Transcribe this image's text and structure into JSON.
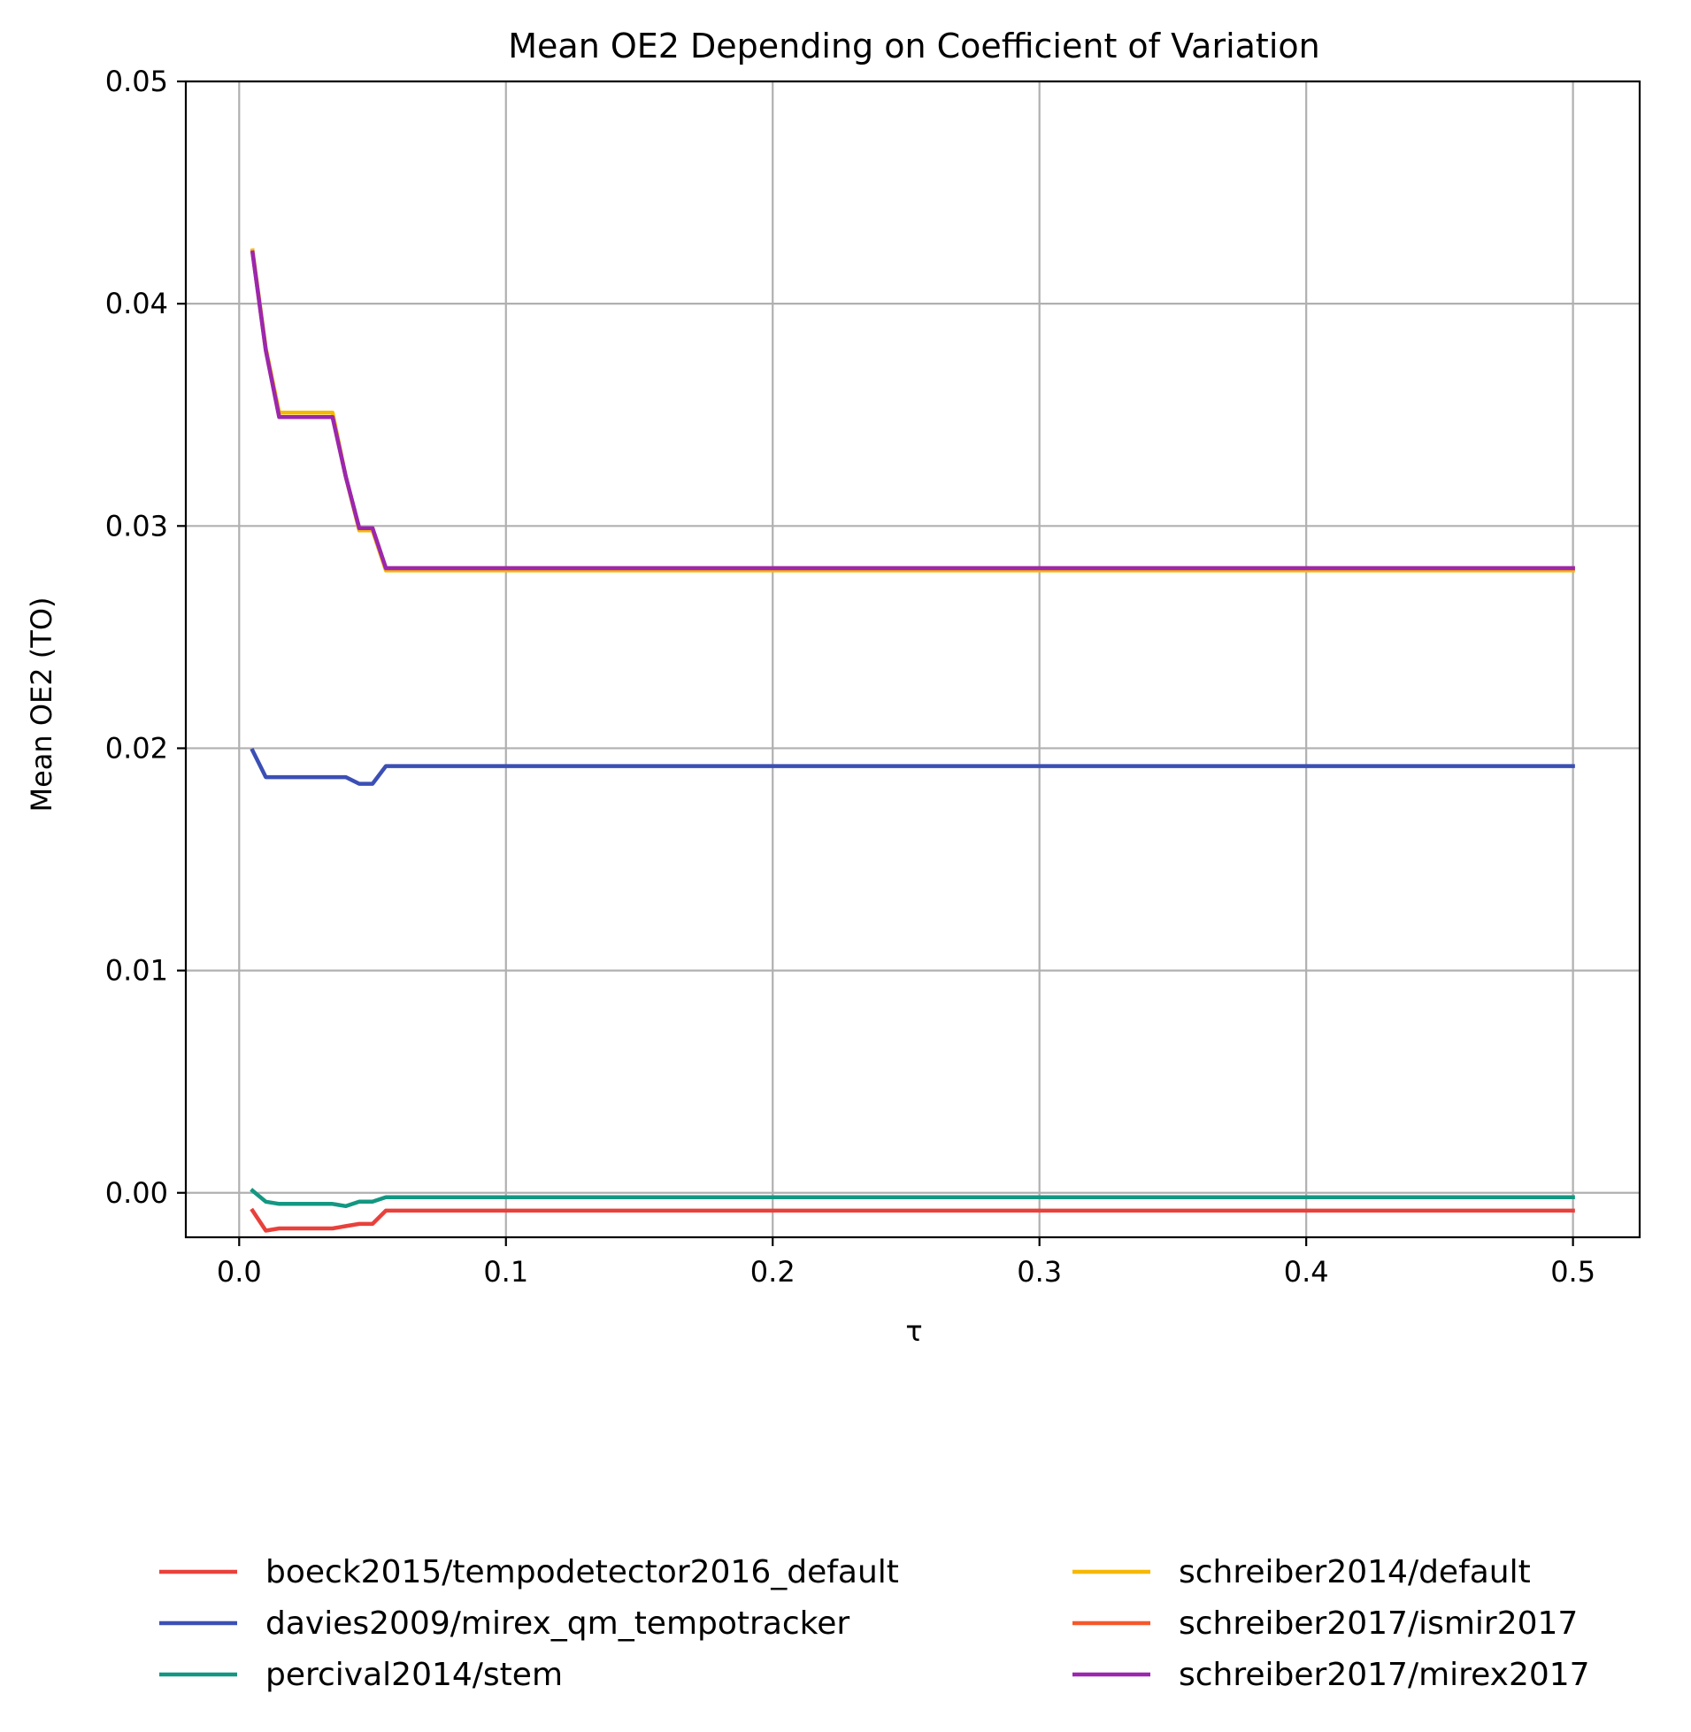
{
  "chart_data": {
    "type": "line",
    "title": "Mean OE2 Depending on Coefficient of Variation",
    "xlabel": "τ",
    "ylabel": "Mean OE2 (TO)",
    "xlim": [
      -0.02,
      0.525
    ],
    "ylim": [
      -0.002,
      0.05
    ],
    "xticks": [
      0.0,
      0.1,
      0.2,
      0.3,
      0.4,
      0.5
    ],
    "xtick_labels": [
      "0.0",
      "0.1",
      "0.2",
      "0.3",
      "0.4",
      "0.5"
    ],
    "yticks": [
      0.0,
      0.01,
      0.02,
      0.03,
      0.04,
      0.05
    ],
    "ytick_labels": [
      "0.00",
      "0.01",
      "0.02",
      "0.03",
      "0.04",
      "0.05"
    ],
    "grid": true,
    "legend_position": "below plot, two columns",
    "series": [
      {
        "name": "boeck2015/tempodetector2016_default",
        "color": "#e8413c",
        "x": [
          0.005,
          0.01,
          0.015,
          0.02,
          0.025,
          0.03,
          0.035,
          0.04,
          0.045,
          0.05,
          0.055,
          0.1,
          0.2,
          0.3,
          0.4,
          0.5
        ],
        "y": [
          -0.0008,
          -0.0017,
          -0.0016,
          -0.0016,
          -0.0016,
          -0.0016,
          -0.0016,
          -0.0015,
          -0.0014,
          -0.0014,
          -0.0008,
          -0.0008,
          -0.0008,
          -0.0008,
          -0.0008,
          -0.0008
        ]
      },
      {
        "name": "davies2009/mirex_qm_tempotracker",
        "color": "#3b4fb5",
        "x": [
          0.005,
          0.01,
          0.015,
          0.02,
          0.025,
          0.03,
          0.035,
          0.04,
          0.045,
          0.05,
          0.055,
          0.1,
          0.2,
          0.3,
          0.4,
          0.5
        ],
        "y": [
          0.0199,
          0.0187,
          0.0187,
          0.0187,
          0.0187,
          0.0187,
          0.0187,
          0.0187,
          0.0184,
          0.0184,
          0.0192,
          0.0192,
          0.0192,
          0.0192,
          0.0192,
          0.0192
        ]
      },
      {
        "name": "percival2014/stem",
        "color": "#139782",
        "x": [
          0.005,
          0.01,
          0.015,
          0.02,
          0.025,
          0.03,
          0.035,
          0.04,
          0.045,
          0.05,
          0.055,
          0.1,
          0.2,
          0.3,
          0.4,
          0.5
        ],
        "y": [
          0.0001,
          -0.0004,
          -0.0005,
          -0.0005,
          -0.0005,
          -0.0005,
          -0.0005,
          -0.0006,
          -0.0004,
          -0.0004,
          -0.0002,
          -0.0002,
          -0.0002,
          -0.0002,
          -0.0002,
          -0.0002
        ]
      },
      {
        "name": "schreiber2014/default",
        "color": "#f6b800",
        "x": [
          0.005,
          0.01,
          0.015,
          0.02,
          0.025,
          0.03,
          0.035,
          0.04,
          0.045,
          0.05,
          0.055,
          0.1,
          0.2,
          0.3,
          0.4,
          0.5
        ],
        "y": [
          0.0424,
          0.038,
          0.0351,
          0.0351,
          0.0351,
          0.0351,
          0.0351,
          0.0322,
          0.0298,
          0.0298,
          0.028,
          0.028,
          0.028,
          0.028,
          0.028,
          0.028
        ]
      },
      {
        "name": "schreiber2017/ismir2017",
        "color": "#f5582c",
        "x": [
          0.005,
          0.01,
          0.015,
          0.02,
          0.025,
          0.03,
          0.035,
          0.04,
          0.045,
          0.05,
          0.055,
          0.1,
          0.2,
          0.3,
          0.4,
          0.5
        ],
        "y": [
          0.0423,
          0.0379,
          0.0349,
          0.0349,
          0.0349,
          0.0349,
          0.0349,
          0.0322,
          0.0299,
          0.0299,
          0.0281,
          0.0281,
          0.0281,
          0.0281,
          0.0281,
          0.0281
        ]
      },
      {
        "name": "schreiber2017/mirex2017",
        "color": "#9b27af",
        "x": [
          0.005,
          0.01,
          0.015,
          0.02,
          0.025,
          0.03,
          0.035,
          0.04,
          0.045,
          0.05,
          0.055,
          0.1,
          0.2,
          0.3,
          0.4,
          0.5
        ],
        "y": [
          0.0423,
          0.0379,
          0.0349,
          0.0349,
          0.0349,
          0.0349,
          0.0349,
          0.0322,
          0.0299,
          0.0299,
          0.0281,
          0.0281,
          0.0281,
          0.0281,
          0.0281,
          0.0281
        ]
      }
    ]
  }
}
